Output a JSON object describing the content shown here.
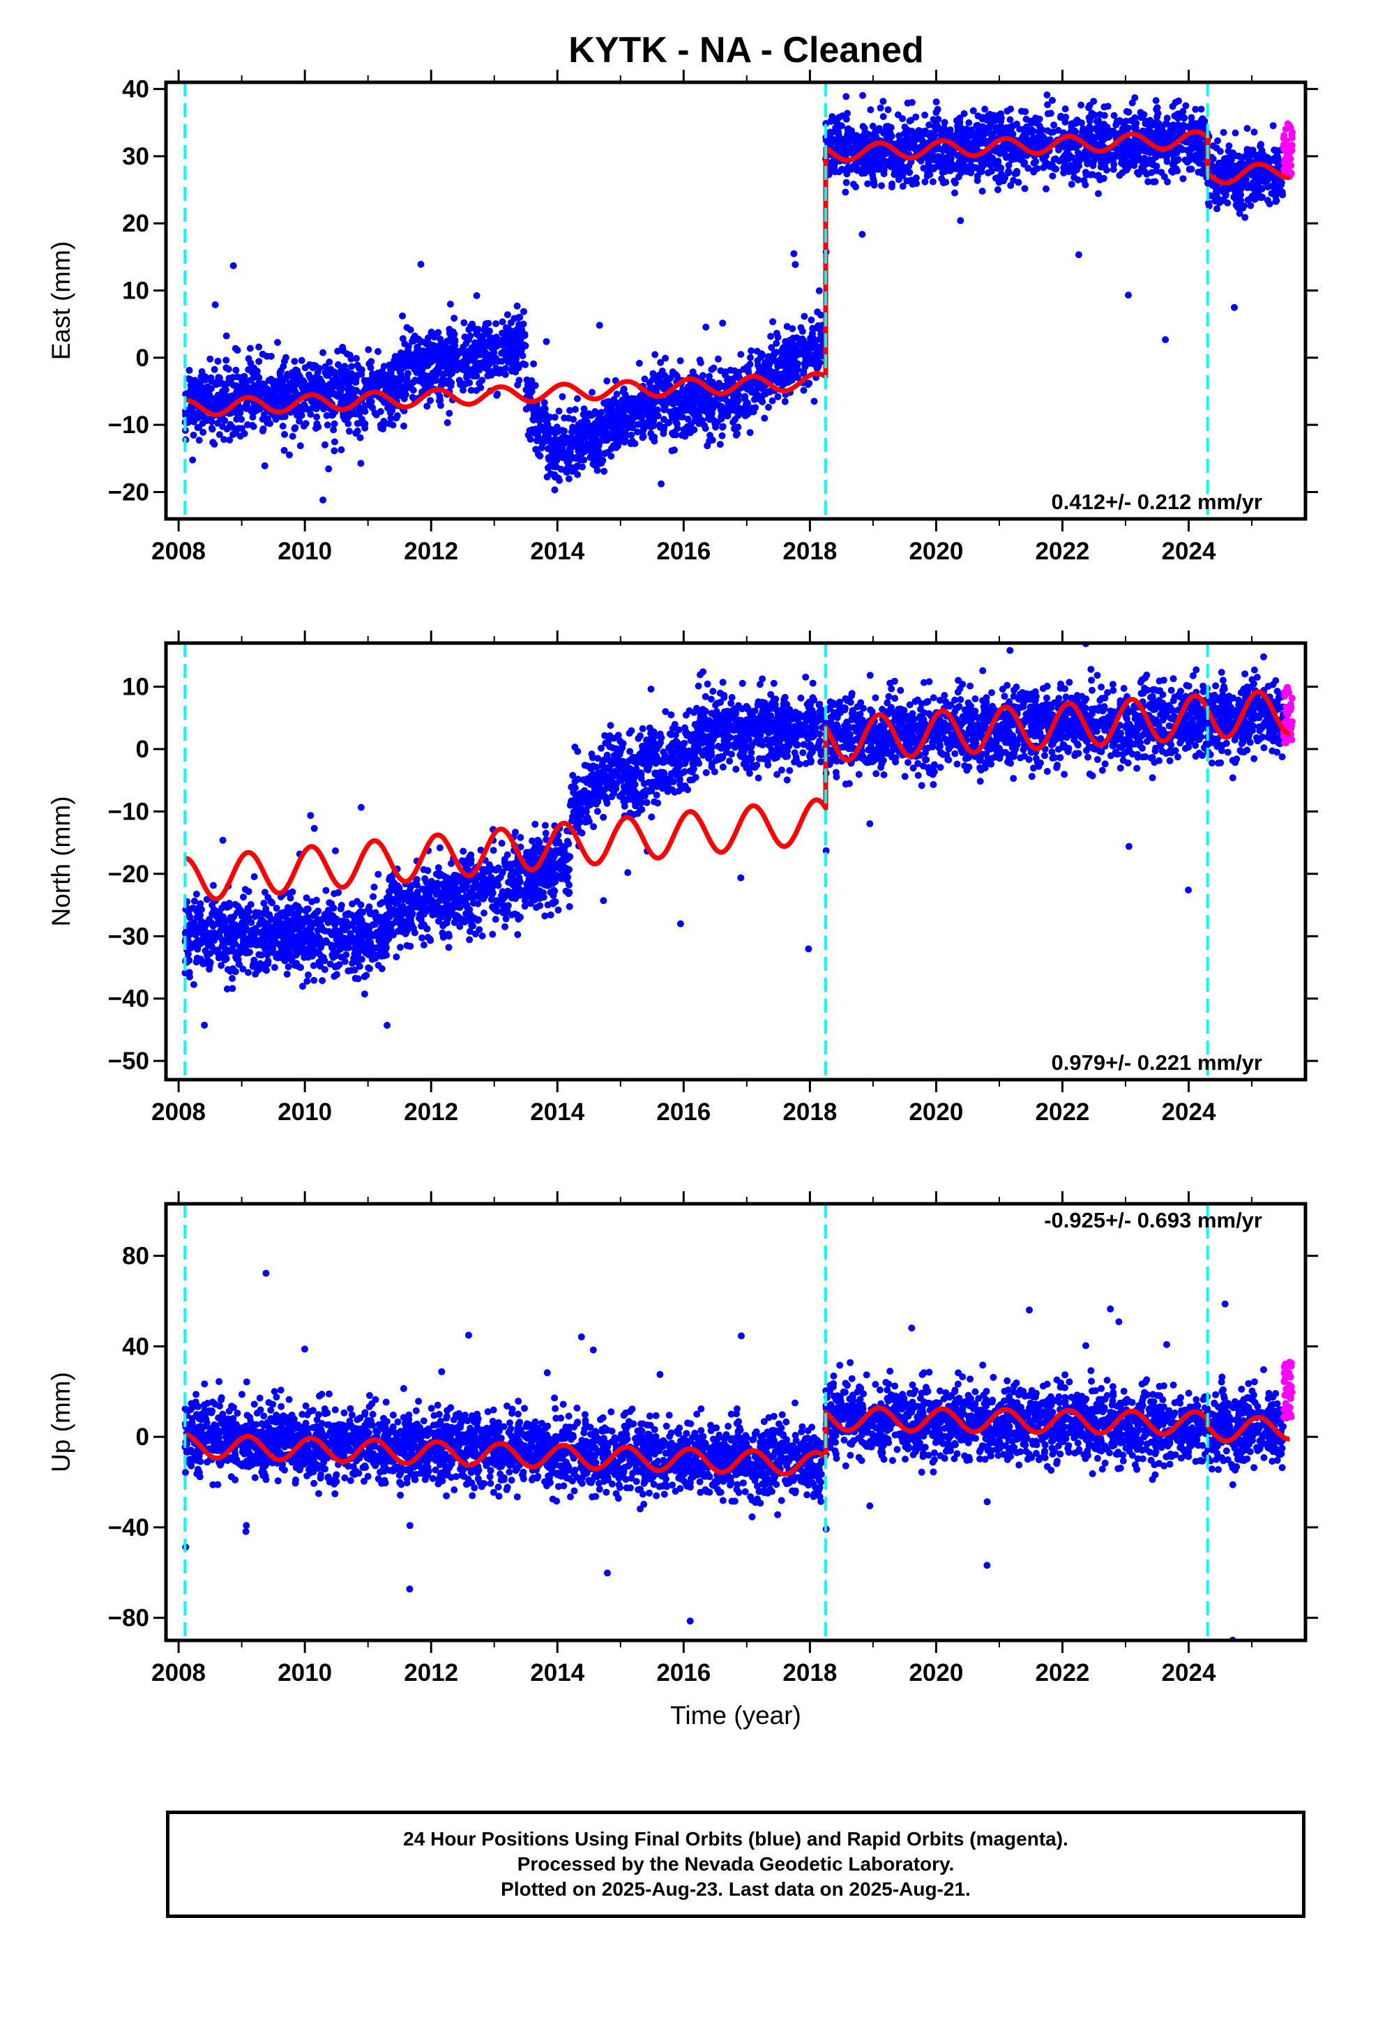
{
  "title": "KYTK  - NA - Cleaned",
  "footer": {
    "line1": "24 Hour Positions Using Final Orbits (blue) and Rapid Orbits (magenta).",
    "line2": "Processed by the Nevada Geodetic Laboratory.",
    "line3": "Plotted on 2025-Aug-23. Last data on 2025-Aug-21."
  },
  "colors": {
    "final": "#0000ff",
    "rapid": "#ff00ff",
    "model": "#ff0000",
    "event": "#00ffff"
  },
  "chart_data": [
    {
      "type": "scatter",
      "ylabel": "East (mm)",
      "rate_label": "0.412+/- 0.212 mm/yr",
      "xlim": [
        2007.8,
        2025.85
      ],
      "ylim": [
        -24,
        41
      ],
      "x_ticks": [
        2008,
        2010,
        2012,
        2014,
        2016,
        2018,
        2020,
        2022,
        2024
      ],
      "y_ticks": [
        40,
        30,
        20,
        10,
        0,
        -10,
        -20
      ],
      "event_lines": [
        2008.1,
        2018.25,
        2024.3
      ],
      "data_start": 2008.1,
      "data_end": 2025.64,
      "rapid_start": 2025.5,
      "series": [
        {
          "name": "Final Orbits",
          "mean_segments": [
            {
              "x0": 2008.1,
              "x1": 2009.0,
              "y0": -7,
              "y1": -6
            },
            {
              "x0": 2009.0,
              "x1": 2011.5,
              "y0": -6,
              "y1": -5
            },
            {
              "x0": 2011.5,
              "x1": 2013.5,
              "y0": -2,
              "y1": 2
            },
            {
              "x0": 2013.5,
              "x1": 2014.0,
              "y0": -5,
              "y1": -16
            },
            {
              "x0": 2014.0,
              "x1": 2015.5,
              "y0": -14,
              "y1": -7
            },
            {
              "x0": 2015.5,
              "x1": 2017.0,
              "y0": -7,
              "y1": -6
            },
            {
              "x0": 2017.0,
              "x1": 2018.2,
              "y0": -5,
              "y1": 2
            },
            {
              "x0": 2018.25,
              "x1": 2024.3,
              "y0": 31,
              "y1": 32
            },
            {
              "x0": 2024.3,
              "x1": 2025.5,
              "y0": 27,
              "y1": 27.5
            }
          ],
          "scatter_sd": 2.5
        },
        {
          "name": "Rapid Orbits",
          "values_range": [
            27,
            35
          ]
        },
        {
          "name": "Model",
          "segments": [
            {
              "x0": 2008.1,
              "x1": 2018.25,
              "y0": -7.5,
              "y1": -3.5,
              "amp": 1.2
            },
            {
              "x0": 2018.25,
              "x1": 2024.3,
              "y0": 30.5,
              "y1": 32.5,
              "amp": 1.2
            },
            {
              "x0": 2024.3,
              "x1": 2025.6,
              "y0": 27,
              "y1": 28,
              "amp": 1.2
            }
          ]
        }
      ]
    },
    {
      "type": "scatter",
      "ylabel": "North (mm)",
      "rate_label": "0.979+/- 0.221 mm/yr",
      "xlim": [
        2007.8,
        2025.85
      ],
      "ylim": [
        -53,
        17
      ],
      "x_ticks": [
        2008,
        2010,
        2012,
        2014,
        2016,
        2018,
        2020,
        2022,
        2024
      ],
      "y_ticks": [
        10,
        0,
        -10,
        -20,
        -30,
        -40,
        -50
      ],
      "event_lines": [
        2008.1,
        2018.25,
        2024.3
      ],
      "data_start": 2008.1,
      "data_end": 2025.64,
      "rapid_start": 2025.5,
      "series": [
        {
          "name": "Final Orbits",
          "mean_segments": [
            {
              "x0": 2008.1,
              "x1": 2011.3,
              "y0": -30,
              "y1": -30
            },
            {
              "x0": 2011.3,
              "x1": 2014.2,
              "y0": -26,
              "y1": -19
            },
            {
              "x0": 2014.2,
              "x1": 2015.0,
              "y0": -10,
              "y1": -2
            },
            {
              "x0": 2015.0,
              "x1": 2016.2,
              "y0": -5,
              "y1": 0
            },
            {
              "x0": 2016.2,
              "x1": 2018.2,
              "y0": 3,
              "y1": 3
            },
            {
              "x0": 2018.25,
              "x1": 2025.5,
              "y0": 2,
              "y1": 5
            }
          ],
          "scatter_sd": 3.0
        },
        {
          "name": "Rapid Orbits",
          "values_range": [
            1,
            10
          ]
        },
        {
          "name": "Model",
          "segments": [
            {
              "x0": 2008.1,
              "x1": 2018.25,
              "y0": -21,
              "y1": -11.5,
              "amp": 3.5
            },
            {
              "x0": 2018.25,
              "x1": 2025.6,
              "y0": 1.5,
              "y1": 6,
              "amp": 3.5
            }
          ]
        }
      ]
    },
    {
      "type": "scatter",
      "ylabel": "Up (mm)",
      "rate_label": "-0.925+/- 0.693 mm/yr",
      "xlim": [
        2007.8,
        2025.85
      ],
      "ylim": [
        -90,
        103
      ],
      "x_ticks": [
        2008,
        2010,
        2012,
        2014,
        2016,
        2018,
        2020,
        2022,
        2024
      ],
      "y_ticks": [
        80,
        40,
        0,
        -40,
        -80
      ],
      "event_lines": [
        2008.1,
        2018.25,
        2024.3
      ],
      "xlabel": "Time (year)",
      "data_start": 2008.1,
      "data_end": 2025.64,
      "rapid_start": 2025.5,
      "series": [
        {
          "name": "Final Orbits",
          "mean_segments": [
            {
              "x0": 2008.1,
              "x1": 2018.2,
              "y0": 0,
              "y1": -12
            },
            {
              "x0": 2018.25,
              "x1": 2025.5,
              "y0": 8,
              "y1": 3
            }
          ],
          "scatter_sd": 8.0
        },
        {
          "name": "Rapid Orbits",
          "values_range": [
            8,
            33
          ]
        },
        {
          "name": "Model",
          "segments": [
            {
              "x0": 2008.1,
              "x1": 2018.25,
              "y0": -4,
              "y1": -12,
              "amp": 5
            },
            {
              "x0": 2018.25,
              "x1": 2024.3,
              "y0": 8,
              "y1": 6,
              "amp": 5
            },
            {
              "x0": 2024.3,
              "x1": 2025.6,
              "y0": 3,
              "y1": 4,
              "amp": 5
            }
          ]
        }
      ]
    }
  ]
}
